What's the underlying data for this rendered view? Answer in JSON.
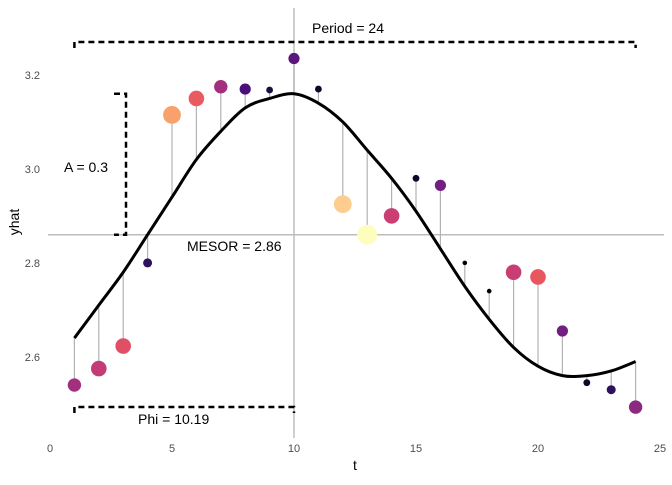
{
  "chart_data": {
    "type": "scatter",
    "xlabel": "t",
    "ylabel": "yhat",
    "xlim": [
      0,
      25
    ],
    "ylim": [
      2.44,
      3.3
    ],
    "x_ticks": [
      0,
      5,
      10,
      15,
      20,
      25
    ],
    "y_ticks": [
      2.6,
      2.8,
      3.0,
      3.2
    ],
    "x_tick_labels": [
      "0",
      "5",
      "10",
      "15",
      "20",
      "25"
    ],
    "y_tick_labels": [
      "2.6",
      "2.8",
      "3.0",
      "3.2"
    ],
    "grid": false,
    "mesor": 2.86,
    "amplitude": 0.3,
    "period": 24,
    "phi": 10.19,
    "fit_line": {
      "x": [
        1,
        2,
        3,
        4,
        5,
        6,
        7,
        8,
        9,
        10,
        11,
        12,
        13,
        14,
        15,
        16,
        17,
        18,
        19,
        20,
        21,
        22,
        23,
        24
      ],
      "y": [
        2.64,
        2.71,
        2.78,
        2.86,
        2.94,
        3.02,
        3.08,
        3.13,
        3.15,
        3.16,
        3.14,
        3.1,
        3.04,
        2.98,
        2.91,
        2.83,
        2.75,
        2.68,
        2.62,
        2.58,
        2.56,
        2.56,
        2.57,
        2.59
      ]
    },
    "points": [
      {
        "x": 1,
        "y": 2.54,
        "size": 5,
        "color": "#a3307e"
      },
      {
        "x": 2,
        "y": 2.575,
        "size": 6,
        "color": "#c43c75"
      },
      {
        "x": 3,
        "y": 2.623,
        "size": 6,
        "color": "#e14f67"
      },
      {
        "x": 4,
        "y": 2.8,
        "size": 3,
        "color": "#2c115f"
      },
      {
        "x": 5,
        "y": 3.115,
        "size": 7,
        "color": "#f9a16c"
      },
      {
        "x": 6,
        "y": 3.15,
        "size": 6,
        "color": "#e85b61"
      },
      {
        "x": 7,
        "y": 3.175,
        "size": 5,
        "color": "#a3307e"
      },
      {
        "x": 8,
        "y": 3.17,
        "size": 4,
        "color": "#4a1079"
      },
      {
        "x": 9,
        "y": 3.168,
        "size": 2,
        "color": "#180f3d"
      },
      {
        "x": 10,
        "y": 3.235,
        "size": 4,
        "color": "#5a167e"
      },
      {
        "x": 11,
        "y": 3.17,
        "size": 2,
        "color": "#0d0829"
      },
      {
        "x": 12,
        "y": 2.925,
        "size": 7,
        "color": "#fdcd90"
      },
      {
        "x": 13,
        "y": 2.86,
        "size": 8,
        "color": "#fcfdbf"
      },
      {
        "x": 14,
        "y": 2.9,
        "size": 6,
        "color": "#cb3e72"
      },
      {
        "x": 15,
        "y": 2.98,
        "size": 2,
        "color": "#0d0829"
      },
      {
        "x": 16,
        "y": 2.965,
        "size": 4,
        "color": "#721f81"
      },
      {
        "x": 17,
        "y": 2.8,
        "size": 1,
        "color": "#000004"
      },
      {
        "x": 18,
        "y": 2.74,
        "size": 1,
        "color": "#000004"
      },
      {
        "x": 19,
        "y": 2.78,
        "size": 6,
        "color": "#c83e73"
      },
      {
        "x": 20,
        "y": 2.77,
        "size": 6,
        "color": "#e8575f"
      },
      {
        "x": 21,
        "y": 2.655,
        "size": 4,
        "color": "#721f81"
      },
      {
        "x": 22,
        "y": 2.545,
        "size": 2,
        "color": "#0d0829"
      },
      {
        "x": 23,
        "y": 2.53,
        "size": 3,
        "color": "#2c115f"
      },
      {
        "x": 24,
        "y": 2.493,
        "size": 5,
        "color": "#8c2981"
      }
    ],
    "annotations": {
      "period_label": "Period = 24",
      "amplitude_label": "A = 0.3",
      "mesor_label": "MESOR = 2.86",
      "phi_label": "Phi = 10.19"
    }
  }
}
